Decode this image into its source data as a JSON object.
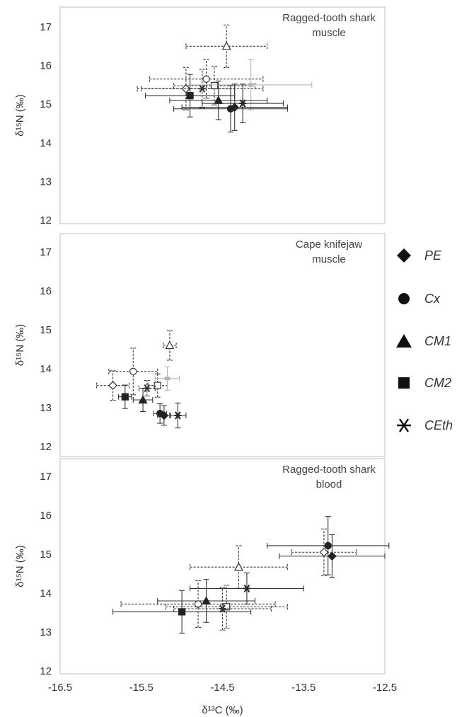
{
  "figure": {
    "x_axis_label": "δ¹³C  (‰)",
    "y_axis_label": "δ¹⁵N  (‰)"
  },
  "legend": [
    {
      "label": "PE",
      "marker": "diamond"
    },
    {
      "label": "Cx",
      "marker": "circle"
    },
    {
      "label": "CM1",
      "marker": "triangle"
    },
    {
      "label": "CM2",
      "marker": "square"
    },
    {
      "label": "CEth",
      "marker": "asterisk"
    }
  ],
  "chart_data": [
    {
      "type": "scatter",
      "title": "Ragged-tooth shark\nmuscle",
      "xlabel": "",
      "ylabel": "δ¹⁵N  (‰)",
      "xlim": [
        -16.5,
        -12.5
      ],
      "ylim": [
        12,
        17
      ],
      "xticks": [],
      "yticks": [
        "12",
        "13",
        "14",
        "15",
        "16",
        "17"
      ],
      "grid": false,
      "points": [
        {
          "group": "PE",
          "style": "open",
          "x": -14.95,
          "y": 15.4,
          "xerr": 0.6,
          "yerr": 0.55
        },
        {
          "group": "Cx",
          "style": "open",
          "x": -14.7,
          "y": 15.65,
          "xerr": 0.7,
          "yerr": 0.5
        },
        {
          "group": "CM1",
          "style": "open",
          "x": -14.45,
          "y": 16.5,
          "xerr": 0.5,
          "yerr": 0.55
        },
        {
          "group": "CM2",
          "style": "open",
          "x": -14.6,
          "y": 15.48,
          "xerr": 0.5,
          "yerr": 0.5
        },
        {
          "group": "CEth",
          "style": "open",
          "x": -14.75,
          "y": 15.4,
          "xerr": 0.75,
          "yerr": 0.5
        },
        {
          "group": "CM2",
          "style": "grey",
          "x": -14.15,
          "y": 15.5,
          "xerr": 0.75,
          "yerr": 0.65
        },
        {
          "group": "CM2",
          "style": "filled",
          "x": -14.9,
          "y": 15.22,
          "xerr": 0.55,
          "yerr": 0.55
        },
        {
          "group": "CM1",
          "style": "filled",
          "x": -14.55,
          "y": 15.1,
          "xerr": 0.6,
          "yerr": 0.5
        },
        {
          "group": "PE",
          "style": "filled",
          "x": -14.35,
          "y": 14.92,
          "xerr": 0.65,
          "yerr": 0.6
        },
        {
          "group": "Cx",
          "style": "filled",
          "x": -14.4,
          "y": 14.88,
          "xerr": 0.7,
          "yerr": 0.6
        },
        {
          "group": "CEth",
          "style": "filled",
          "x": -14.25,
          "y": 15.02,
          "xerr": 0.5,
          "yerr": 0.5
        }
      ]
    },
    {
      "type": "scatter",
      "title": "Cape knifejaw\nmuscle",
      "xlabel": "",
      "ylabel": "δ¹⁵N  (‰)",
      "xlim": [
        -16.5,
        -12.5
      ],
      "ylim": [
        12,
        17
      ],
      "xticks": [],
      "yticks": [
        "12",
        "13",
        "14",
        "15",
        "16",
        "17"
      ],
      "grid": false,
      "points": [
        {
          "group": "PE",
          "style": "open",
          "x": -15.85,
          "y": 13.57,
          "xerr": 0.2,
          "yerr": 0.38
        },
        {
          "group": "Cx",
          "style": "open",
          "x": -15.6,
          "y": 13.93,
          "xerr": 0.3,
          "yerr": 0.6
        },
        {
          "group": "CM1",
          "style": "open",
          "x": -15.15,
          "y": 14.6,
          "xerr": 0.08,
          "yerr": 0.38
        },
        {
          "group": "CM2",
          "style": "open",
          "x": -15.3,
          "y": 13.57,
          "xerr": 0.12,
          "yerr": 0.3
        },
        {
          "group": "CEth",
          "style": "open",
          "x": -15.43,
          "y": 13.5,
          "xerr": 0.1,
          "yerr": 0.2
        },
        {
          "group": "CM2",
          "style": "grey",
          "x": -15.18,
          "y": 13.75,
          "xerr": 0.15,
          "yerr": 0.3
        },
        {
          "group": "CM2",
          "style": "filled",
          "x": -15.7,
          "y": 13.28,
          "xerr": 0.08,
          "yerr": 0.3
        },
        {
          "group": "CM1",
          "style": "filled",
          "x": -15.48,
          "y": 13.2,
          "xerr": 0.12,
          "yerr": 0.3
        },
        {
          "group": "Cx",
          "style": "filled",
          "x": -15.27,
          "y": 12.85,
          "xerr": 0.08,
          "yerr": 0.25
        },
        {
          "group": "PE",
          "style": "filled",
          "x": -15.22,
          "y": 12.8,
          "xerr": 0.08,
          "yerr": 0.25
        },
        {
          "group": "CEth",
          "style": "filled",
          "x": -15.05,
          "y": 12.8,
          "xerr": 0.1,
          "yerr": 0.32
        }
      ]
    },
    {
      "type": "scatter",
      "title": "Ragged-tooth shark\nblood",
      "xlabel": "δ¹³C  (‰)",
      "ylabel": "δ¹⁵N  (‰)",
      "xlim": [
        -16.5,
        -12.5
      ],
      "ylim": [
        12,
        17
      ],
      "xticks": [
        "-16.5",
        "-15.5",
        "-14.5",
        "-13.5",
        "-12.5"
      ],
      "yticks": [
        "12",
        "13",
        "14",
        "15",
        "16",
        "17"
      ],
      "grid": false,
      "points": [
        {
          "group": "PE",
          "style": "open",
          "x": -13.25,
          "y": 15.05,
          "xerr": 0.4,
          "yerr": 0.6
        },
        {
          "group": "CM1",
          "style": "open",
          "x": -14.3,
          "y": 14.67,
          "xerr": 0.6,
          "yerr": 0.55
        },
        {
          "group": "Cx",
          "style": "open",
          "x": -14.8,
          "y": 13.72,
          "xerr": 0.95,
          "yerr": 0.6
        },
        {
          "group": "CM2",
          "style": "open",
          "x": -14.45,
          "y": 13.65,
          "xerr": 0.75,
          "yerr": 0.55
        },
        {
          "group": "CEth",
          "style": "open",
          "x": -14.5,
          "y": 13.6,
          "xerr": 0.6,
          "yerr": 0.55
        },
        {
          "group": "Cx",
          "style": "filled",
          "x": -13.2,
          "y": 15.22,
          "xerr": 0.75,
          "yerr": 0.75
        },
        {
          "group": "PE",
          "style": "filled",
          "x": -13.15,
          "y": 14.95,
          "xerr": 0.65,
          "yerr": 0.55
        },
        {
          "group": "CEth",
          "style": "filled",
          "x": -14.2,
          "y": 14.12,
          "xerr": 0.7,
          "yerr": 0.4
        },
        {
          "group": "CM1",
          "style": "filled",
          "x": -14.7,
          "y": 13.8,
          "xerr": 0.6,
          "yerr": 0.55
        },
        {
          "group": "CM2",
          "style": "filled",
          "x": -15.0,
          "y": 13.52,
          "xerr": 0.85,
          "yerr": 0.55
        }
      ]
    }
  ]
}
